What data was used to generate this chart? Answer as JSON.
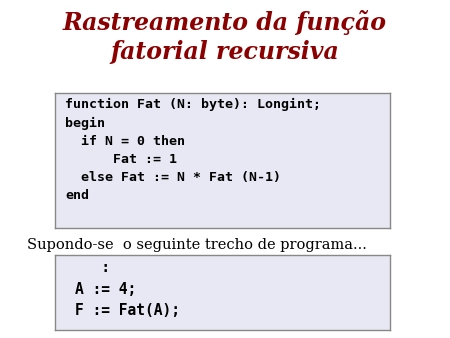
{
  "title_line1": "Rastreamento da função",
  "title_line2": "fatorial recursiva",
  "title_color": "#8B0000",
  "title_fontsize": 17,
  "bg_color": "#ffffff",
  "box_bg_color": "#e8e8f4",
  "box_edge_color": "#888888",
  "code_box1": [
    "function Fat (N: byte): Longint;",
    "begin",
    "  if N = 0 then",
    "      Fat := 1",
    "  else Fat := N * Fat (N-1)",
    "end"
  ],
  "middle_text": "Supondo-se  o seguinte trecho de programa...",
  "code_box2": [
    "   :",
    "A := 4;",
    "F := Fat(A);"
  ],
  "code_fontsize": 9.5,
  "body_text_fontsize": 10.5,
  "body_text_color": "#000000",
  "fig_w": 4.5,
  "fig_h": 3.38,
  "dpi": 100
}
